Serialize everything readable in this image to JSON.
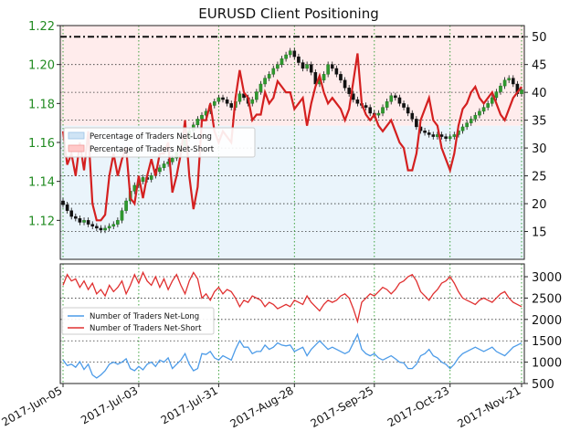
{
  "chart_data": [
    {
      "type": "candlestick+line",
      "title": "EURUSD Client Positioning",
      "x_tick_labels": [
        "2017-Jun-05",
        "2017-Jul-03",
        "2017-Jul-31",
        "2017-Aug-28",
        "2017-Sep-25",
        "2017-Oct-23",
        "2017-Nov-21"
      ],
      "left_axis": {
        "ylim": [
          1.1,
          1.22
        ],
        "ticks": [
          "1.12",
          "1.14",
          "1.16",
          "1.18",
          "1.20",
          "1.22"
        ],
        "color": "#228b22"
      },
      "right_axis": {
        "ylim": [
          10,
          52
        ],
        "ticks": [
          "15",
          "20",
          "25",
          "30",
          "35",
          "40",
          "45",
          "50"
        ],
        "reference_line": 50
      },
      "legend": {
        "placement": "center-left",
        "entries": [
          "Percentage of Traders Net-Long",
          "Percentage of Traders Net-Short"
        ]
      },
      "price_close": [
        1.128,
        1.125,
        1.122,
        1.121,
        1.119,
        1.12,
        1.118,
        1.117,
        1.116,
        1.115,
        1.116,
        1.117,
        1.118,
        1.12,
        1.125,
        1.13,
        1.135,
        1.138,
        1.14,
        1.142,
        1.141,
        1.143,
        1.145,
        1.147,
        1.149,
        1.15,
        1.152,
        1.155,
        1.158,
        1.162,
        1.166,
        1.169,
        1.172,
        1.174,
        1.176,
        1.179,
        1.181,
        1.183,
        1.182,
        1.18,
        1.178,
        1.181,
        1.185,
        1.183,
        1.18,
        1.182,
        1.186,
        1.19,
        1.193,
        1.195,
        1.198,
        1.2,
        1.203,
        1.205,
        1.207,
        1.204,
        1.201,
        1.198,
        1.2,
        1.196,
        1.19,
        1.192,
        1.195,
        1.2,
        1.198,
        1.195,
        1.192,
        1.188,
        1.185,
        1.182,
        1.18,
        1.179,
        1.178,
        1.175,
        1.174,
        1.175,
        1.178,
        1.181,
        1.184,
        1.183,
        1.18,
        1.178,
        1.175,
        1.172,
        1.168,
        1.166,
        1.165,
        1.164,
        1.163,
        1.164,
        1.163,
        1.162,
        1.163,
        1.164,
        1.166,
        1.168,
        1.17,
        1.172,
        1.174,
        1.176,
        1.178,
        1.18,
        1.183,
        1.186,
        1.189,
        1.192,
        1.193,
        1.19,
        1.185,
        1.187
      ],
      "percent_net_long": [
        33,
        27,
        29,
        25,
        31,
        26,
        33,
        20,
        17,
        17,
        18,
        25,
        29,
        25,
        28,
        30,
        21,
        20,
        25,
        21,
        25,
        28,
        25,
        29,
        29,
        31,
        22,
        25,
        29,
        35,
        25,
        19,
        23,
        35,
        35,
        38,
        33,
        31,
        33,
        32,
        31,
        39,
        44,
        40,
        39,
        35,
        36,
        36,
        40,
        38,
        39,
        42,
        41,
        40,
        40,
        37,
        38,
        39,
        34,
        38,
        41,
        43,
        40,
        38,
        39,
        38,
        37,
        35,
        37,
        42,
        47,
        38,
        36,
        35,
        36,
        34,
        33,
        34,
        35,
        33,
        31,
        30,
        26,
        26,
        29,
        35,
        37,
        39,
        35,
        34,
        30,
        28,
        26,
        29,
        34,
        37,
        38,
        40,
        41,
        39,
        38,
        39,
        40,
        38,
        36,
        35,
        37,
        39,
        40,
        41
      ]
    },
    {
      "type": "line",
      "legend": {
        "placement": "center-left",
        "entries": [
          "Number of Traders Net-Long",
          "Number of Traders Net-Short"
        ]
      },
      "ylim": [
        500,
        3300
      ],
      "ticks": [
        "500",
        "1000",
        "1500",
        "2000",
        "2500",
        "3000"
      ],
      "series": [
        {
          "name": "Number of Traders Net-Long",
          "color": "#4c9be8",
          "values": [
            1050,
            920,
            950,
            880,
            1010,
            830,
            950,
            700,
            630,
            700,
            800,
            950,
            1000,
            950,
            1000,
            1080,
            850,
            800,
            900,
            820,
            950,
            1000,
            900,
            1050,
            1000,
            1100,
            850,
            950,
            1050,
            1200,
            950,
            800,
            850,
            1200,
            1180,
            1250,
            1100,
            1050,
            1150,
            1100,
            1050,
            1300,
            1500,
            1350,
            1350,
            1200,
            1250,
            1250,
            1400,
            1300,
            1350,
            1450,
            1400,
            1380,
            1400,
            1250,
            1300,
            1350,
            1150,
            1300,
            1400,
            1500,
            1400,
            1300,
            1350,
            1300,
            1250,
            1200,
            1250,
            1450,
            1650,
            1300,
            1200,
            1150,
            1200,
            1100,
            1050,
            1100,
            1150,
            1080,
            1000,
            980,
            850,
            850,
            950,
            1150,
            1200,
            1300,
            1150,
            1100,
            1000,
            950,
            850,
            950,
            1100,
            1200,
            1250,
            1300,
            1350,
            1300,
            1250,
            1300,
            1350,
            1250,
            1200,
            1150,
            1250,
            1350,
            1400,
            1450
          ]
        },
        {
          "name": "Number of Traders Net-Short",
          "color": "#e03030",
          "values": [
            2800,
            3050,
            2900,
            2950,
            2750,
            2900,
            2700,
            2850,
            2600,
            2700,
            2550,
            2800,
            2650,
            2750,
            2900,
            2600,
            2800,
            3050,
            2850,
            3100,
            2900,
            2800,
            3000,
            2750,
            2950,
            2700,
            2900,
            3050,
            2800,
            2600,
            2900,
            3100,
            2950,
            2500,
            2600,
            2450,
            2650,
            2750,
            2600,
            2700,
            2650,
            2500,
            2300,
            2450,
            2400,
            2550,
            2500,
            2450,
            2300,
            2400,
            2350,
            2250,
            2300,
            2350,
            2300,
            2450,
            2400,
            2350,
            2550,
            2400,
            2300,
            2200,
            2350,
            2450,
            2400,
            2450,
            2550,
            2600,
            2500,
            2250,
            1950,
            2400,
            2500,
            2600,
            2550,
            2650,
            2750,
            2700,
            2600,
            2700,
            2850,
            2900,
            3000,
            3050,
            2900,
            2650,
            2550,
            2450,
            2600,
            2700,
            2850,
            2900,
            3000,
            2850,
            2650,
            2500,
            2450,
            2400,
            2350,
            2450,
            2500,
            2450,
            2400,
            2500,
            2600,
            2650,
            2500,
            2400,
            2350,
            2300
          ]
        }
      ]
    }
  ]
}
